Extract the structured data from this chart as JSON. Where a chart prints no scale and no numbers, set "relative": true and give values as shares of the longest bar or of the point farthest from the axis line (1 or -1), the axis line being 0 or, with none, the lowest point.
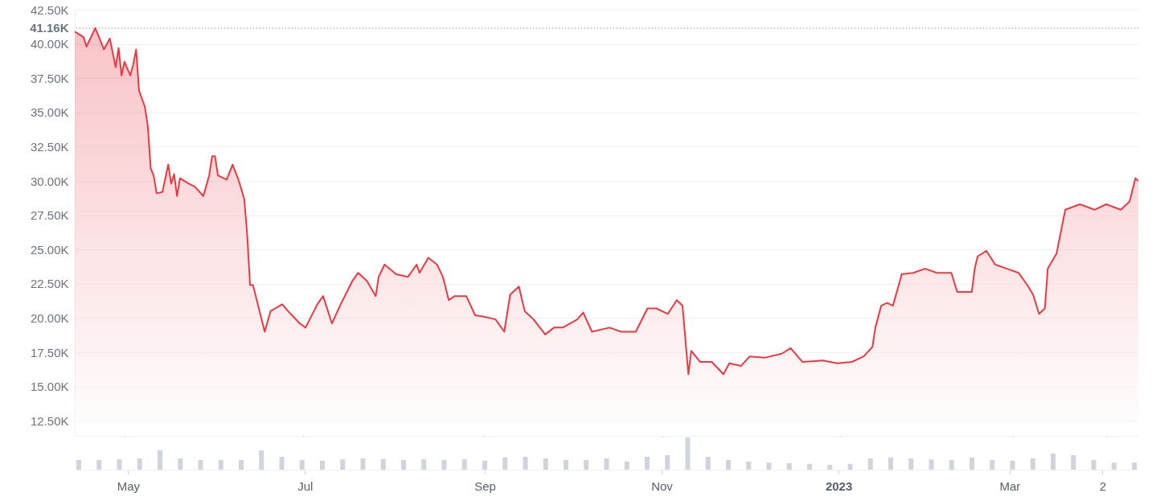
{
  "chart_data": [
    {
      "type": "area",
      "grid": "y",
      "tick_labels": "y",
      "xlim": [
        "2022-04-14",
        "2023-04-13"
      ],
      "ylim": [
        11.4,
        42.5
      ],
      "yticks": [
        {
          "value": 12.5,
          "label": "12.50K"
        },
        {
          "value": 15,
          "label": "15.00K"
        },
        {
          "value": 17.5,
          "label": "17.50K"
        },
        {
          "value": 20,
          "label": "20.00K"
        },
        {
          "value": 22.5,
          "label": "22.50K"
        },
        {
          "value": 25,
          "label": "25.00K"
        },
        {
          "value": 27.5,
          "label": "27.50K"
        },
        {
          "value": 30,
          "label": "30.00K"
        },
        {
          "value": 32.5,
          "label": "32.50K"
        },
        {
          "value": 35,
          "label": "35.00K"
        },
        {
          "value": 37.5,
          "label": "37.50K"
        },
        {
          "value": 40,
          "label": "40.00K"
        },
        {
          "value": 42.5,
          "label": "42.50K"
        }
      ],
      "xticks": [
        {
          "value": "2022-05-01",
          "label": null
        },
        {
          "value": "2022-07-01",
          "label": null
        },
        {
          "value": "2022-09-01",
          "label": null
        },
        {
          "value": "2022-11-01",
          "label": null
        },
        {
          "value": "2023-01-01",
          "label": null
        },
        {
          "value": "2023-03-01",
          "label": null
        },
        {
          "value": "2023-04-02",
          "label": null
        }
      ],
      "ref_lines": [
        {
          "axis": "y",
          "value": 41.16,
          "label": "41.16K",
          "color": "#9aa0ab",
          "line_style": "dotted"
        }
      ],
      "x": [
        "2022-04-14",
        "2022-04-17",
        "2022-04-18",
        "2022-04-21",
        "2022-04-24",
        "2022-04-26",
        "2022-04-28",
        "2022-04-29",
        "2022-04-30",
        "2022-05-01",
        "2022-05-03",
        "2022-05-04",
        "2022-05-05",
        "2022-05-06",
        "2022-05-08",
        "2022-05-09",
        "2022-05-10",
        "2022-05-11",
        "2022-05-12",
        "2022-05-14",
        "2022-05-16",
        "2022-05-17",
        "2022-05-18",
        "2022-05-19",
        "2022-05-20",
        "2022-05-23",
        "2022-05-25",
        "2022-05-28",
        "2022-05-30",
        "2022-05-31",
        "2022-06-01",
        "2022-06-02",
        "2022-06-05",
        "2022-06-07",
        "2022-06-09",
        "2022-06-11",
        "2022-06-12",
        "2022-06-13",
        "2022-06-14",
        "2022-06-16",
        "2022-06-18",
        "2022-06-20",
        "2022-06-24",
        "2022-06-26",
        "2022-06-30",
        "2022-07-02",
        "2022-07-06",
        "2022-07-08",
        "2022-07-11",
        "2022-07-14",
        "2022-07-18",
        "2022-07-20",
        "2022-07-23",
        "2022-07-26",
        "2022-07-27",
        "2022-07-29",
        "2022-08-02",
        "2022-08-06",
        "2022-08-09",
        "2022-08-10",
        "2022-08-13",
        "2022-08-16",
        "2022-08-18",
        "2022-08-20",
        "2022-08-22",
        "2022-08-26",
        "2022-08-29",
        "2022-09-01",
        "2022-09-05",
        "2022-09-08",
        "2022-09-10",
        "2022-09-13",
        "2022-09-15",
        "2022-09-18",
        "2022-09-22",
        "2022-09-25",
        "2022-09-28",
        "2022-10-03",
        "2022-10-05",
        "2022-10-08",
        "2022-10-14",
        "2022-10-18",
        "2022-10-23",
        "2022-10-27",
        "2022-10-30",
        "2022-11-03",
        "2022-11-06",
        "2022-11-08",
        "2022-11-09",
        "2022-11-10",
        "2022-11-11",
        "2022-11-14",
        "2022-11-18",
        "2022-11-22",
        "2022-11-24",
        "2022-11-28",
        "2022-12-01",
        "2022-12-06",
        "2022-12-12",
        "2022-12-15",
        "2022-12-19",
        "2022-12-26",
        "2022-12-31",
        "2023-01-05",
        "2023-01-09",
        "2023-01-12",
        "2023-01-13",
        "2023-01-15",
        "2023-01-17",
        "2023-01-19",
        "2023-01-21",
        "2023-01-22",
        "2023-01-26",
        "2023-01-30",
        "2023-02-03",
        "2023-02-08",
        "2023-02-10",
        "2023-02-15",
        "2023-02-16",
        "2023-02-17",
        "2023-02-20",
        "2023-02-23",
        "2023-02-27",
        "2023-03-03",
        "2023-03-06",
        "2023-03-08",
        "2023-03-10",
        "2023-03-12",
        "2023-03-13",
        "2023-03-16",
        "2023-03-19",
        "2023-03-24",
        "2023-03-29",
        "2023-04-02",
        "2023-04-07",
        "2023-04-10",
        "2023-04-12",
        "2023-04-13"
      ],
      "series": [
        {
          "color": "#ea3943",
          "values": [
            40.9,
            40.5,
            39.8,
            41.16,
            39.6,
            40.4,
            38.3,
            39.7,
            37.7,
            38.7,
            37.7,
            38.5,
            39.6,
            36.6,
            35.4,
            34.0,
            30.9,
            30.4,
            29.1,
            29.2,
            31.2,
            29.8,
            30.5,
            28.9,
            30.2,
            29.8,
            29.6,
            28.9,
            30.4,
            31.8,
            31.8,
            30.4,
            30.1,
            31.2,
            30.1,
            28.7,
            26.1,
            22.4,
            22.4,
            20.7,
            19.0,
            20.5,
            21.0,
            20.5,
            19.6,
            19.3,
            21.0,
            21.6,
            19.6,
            21.0,
            22.7,
            23.3,
            22.7,
            21.6,
            23.0,
            23.9,
            23.2,
            23.0,
            23.9,
            23.3,
            24.4,
            23.9,
            23.0,
            21.3,
            21.6,
            21.6,
            20.2,
            20.1,
            19.9,
            19.0,
            21.7,
            22.3,
            20.5,
            19.9,
            18.8,
            19.3,
            19.3,
            19.9,
            20.4,
            19.0,
            19.3,
            19.0,
            19.0,
            20.7,
            20.7,
            20.3,
            21.3,
            20.9,
            18.4,
            15.9,
            17.6,
            16.8,
            16.8,
            15.9,
            16.7,
            16.5,
            17.2,
            17.1,
            17.4,
            17.8,
            16.8,
            16.9,
            16.7,
            16.8,
            17.2,
            17.9,
            19.3,
            20.9,
            21.1,
            20.9,
            22.4,
            23.2,
            23.3,
            23.6,
            23.3,
            23.3,
            21.9,
            21.9,
            23.6,
            24.5,
            24.9,
            23.9,
            23.6,
            23.3,
            22.4,
            21.7,
            20.3,
            20.7,
            23.6,
            24.7,
            27.9,
            28.3,
            27.9,
            28.3,
            27.9,
            28.5,
            30.2,
            30.0
          ]
        }
      ]
    },
    {
      "type": "bar",
      "relative": true,
      "tick_labels": "x",
      "xlim": [
        "2022-04-14",
        "2023-04-13"
      ],
      "xticks": [
        {
          "value": "2022-05-01",
          "label": "May"
        },
        {
          "value": "2022-07-01",
          "label": "Jul"
        },
        {
          "value": "2022-09-01",
          "label": "Sep"
        },
        {
          "value": "2022-11-01",
          "label": "Nov"
        },
        {
          "value": "2023-01-01",
          "label": "2023"
        },
        {
          "value": "2023-03-01",
          "label": "Mar"
        },
        {
          "value": "2023-04-02",
          "label": "2"
        }
      ],
      "x": [
        "2022-04-14",
        "2022-04-21",
        "2022-04-28",
        "2022-05-05",
        "2022-05-12",
        "2022-05-19",
        "2022-05-26",
        "2022-06-02",
        "2022-06-09",
        "2022-06-16",
        "2022-06-23",
        "2022-06-30",
        "2022-07-07",
        "2022-07-14",
        "2022-07-21",
        "2022-07-28",
        "2022-08-04",
        "2022-08-11",
        "2022-08-18",
        "2022-08-25",
        "2022-09-01",
        "2022-09-08",
        "2022-09-15",
        "2022-09-22",
        "2022-09-29",
        "2022-10-06",
        "2022-10-13",
        "2022-10-20",
        "2022-10-27",
        "2022-11-03",
        "2022-11-10",
        "2022-11-17",
        "2022-11-24",
        "2022-12-01",
        "2022-12-08",
        "2022-12-15",
        "2022-12-22",
        "2022-12-29",
        "2023-01-05",
        "2023-01-12",
        "2023-01-19",
        "2023-01-26",
        "2023-02-02",
        "2023-02-09",
        "2023-02-16",
        "2023-02-23",
        "2023-03-02",
        "2023-03-09",
        "2023-03-16",
        "2023-03-23",
        "2023-03-30",
        "2023-04-06",
        "2023-04-13"
      ],
      "series": [
        {
          "color": "#cfd4dd",
          "values": [
            0.3,
            0.3,
            0.32,
            0.35,
            0.6,
            0.35,
            0.3,
            0.3,
            0.3,
            0.6,
            0.4,
            0.3,
            0.28,
            0.32,
            0.35,
            0.33,
            0.3,
            0.32,
            0.3,
            0.32,
            0.28,
            0.38,
            0.4,
            0.35,
            0.3,
            0.3,
            0.35,
            0.25,
            0.4,
            0.45,
            1,
            0.4,
            0.3,
            0.25,
            0.22,
            0.2,
            0.18,
            0.15,
            0.18,
            0.35,
            0.38,
            0.35,
            0.32,
            0.3,
            0.38,
            0.3,
            0.28,
            0.35,
            0.5,
            0.45,
            0.3,
            0.22,
            0.22
          ]
        }
      ]
    }
  ]
}
